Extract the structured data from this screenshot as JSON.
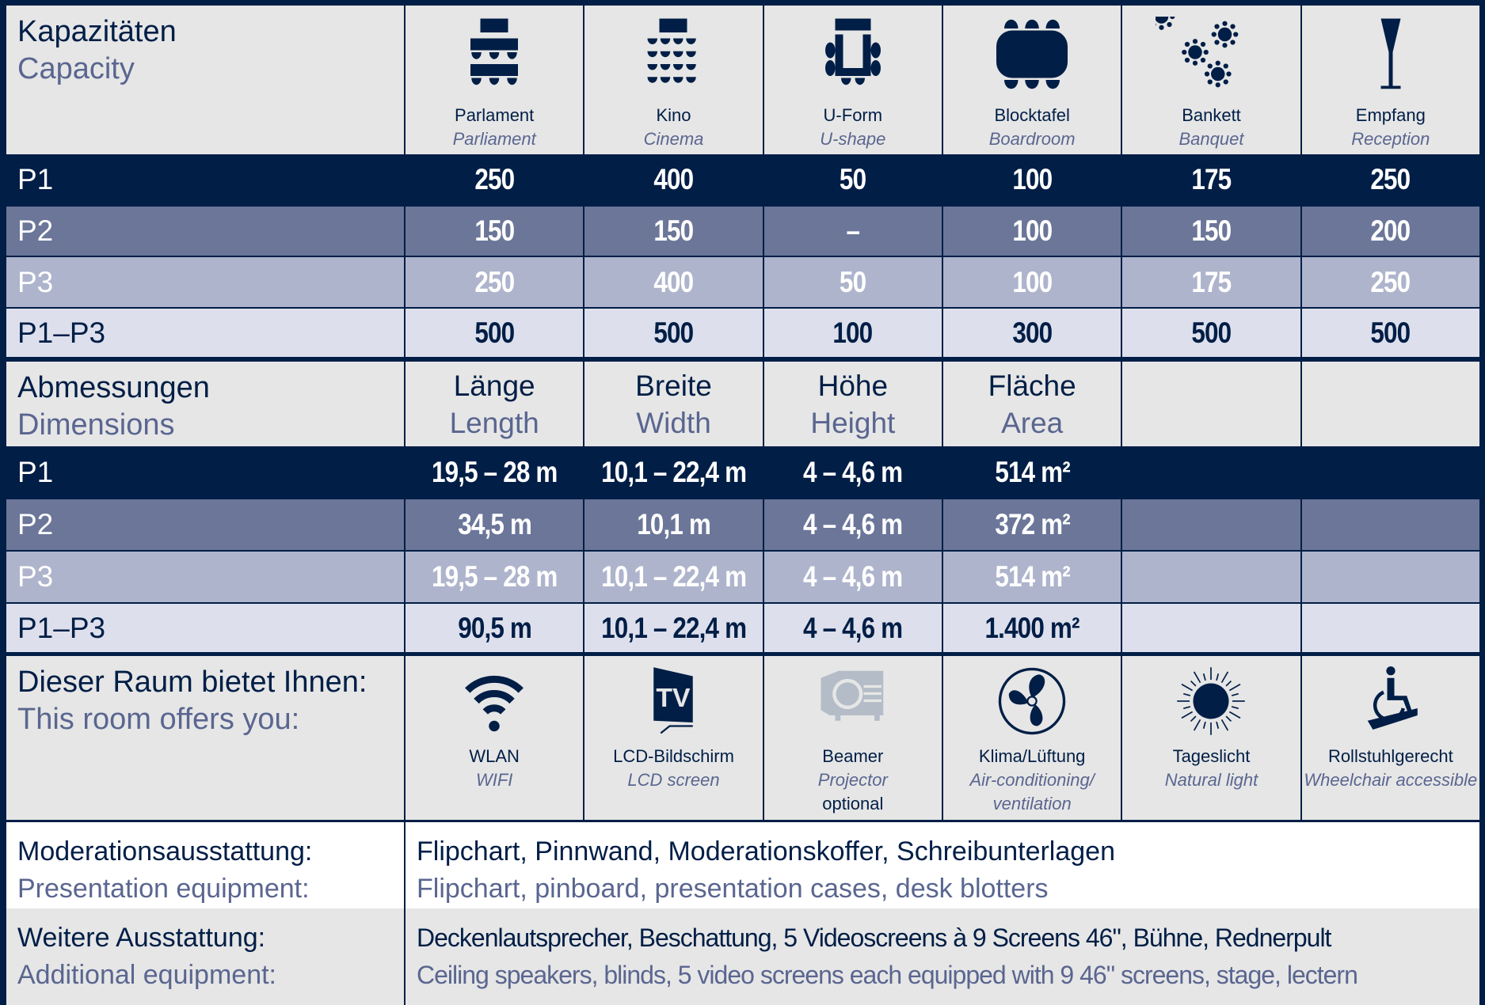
{
  "capacity": {
    "title_de": "Kapazitäten",
    "title_en": "Capacity",
    "columns": [
      {
        "de": "Parlament",
        "en": "Parliament",
        "icon": "parliament-seating-icon"
      },
      {
        "de": "Kino",
        "en": "Cinema",
        "icon": "cinema-seating-icon"
      },
      {
        "de": "U-Form",
        "en": "U-shape",
        "icon": "u-shape-seating-icon"
      },
      {
        "de": "Blocktafel",
        "en": "Boardroom",
        "icon": "boardroom-seating-icon"
      },
      {
        "de": "Bankett",
        "en": "Banquet",
        "icon": "banquet-seating-icon"
      },
      {
        "de": "Empfang",
        "en": "Reception",
        "icon": "reception-glass-icon"
      }
    ],
    "rows": [
      {
        "label": "P1",
        "values": [
          "250",
          "400",
          "50",
          "100",
          "175",
          "250"
        ]
      },
      {
        "label": "P2",
        "values": [
          "150",
          "150",
          "–",
          "100",
          "150",
          "200"
        ]
      },
      {
        "label": "P3",
        "values": [
          "250",
          "400",
          "50",
          "100",
          "175",
          "250"
        ]
      },
      {
        "label": "P1–P3",
        "values": [
          "500",
          "500",
          "100",
          "300",
          "500",
          "500"
        ]
      }
    ]
  },
  "dimensions": {
    "title_de": "Abmessungen",
    "title_en": "Dimensions",
    "columns": [
      {
        "de": "Länge",
        "en": "Length"
      },
      {
        "de": "Breite",
        "en": "Width"
      },
      {
        "de": "Höhe",
        "en": "Height"
      },
      {
        "de": "Fläche",
        "en": "Area"
      }
    ],
    "rows": [
      {
        "label": "P1",
        "values": [
          "19,5 – 28 m",
          "10,1 – 22,4 m",
          "4 – 4,6 m",
          "514 m²"
        ]
      },
      {
        "label": "P2",
        "values": [
          "34,5 m",
          "10,1 m",
          "4 – 4,6 m",
          "372 m²"
        ]
      },
      {
        "label": "P3",
        "values": [
          "19,5 – 28 m",
          "10,1 – 22,4 m",
          "4 – 4,6 m",
          "514 m²"
        ]
      },
      {
        "label": "P1–P3",
        "values": [
          "90,5 m",
          "10,1 – 22,4 m",
          "4 – 4,6 m",
          "1.400 m²"
        ]
      }
    ]
  },
  "offers": {
    "title_de": "Dieser Raum bietet Ihnen:",
    "title_en": "This room offers you:",
    "items": [
      {
        "de": "WLAN",
        "en": "WIFI",
        "icon": "wifi-icon"
      },
      {
        "de": "LCD-Bildschirm",
        "en": "LCD screen",
        "icon": "tv-icon"
      },
      {
        "de": "Beamer",
        "en": "Projector",
        "note": "optional",
        "icon": "projector-icon",
        "available": false
      },
      {
        "de": "Klima/Lüftung",
        "en": "Air-conditioning/ ventilation",
        "icon": "fan-icon"
      },
      {
        "de": "Tageslicht",
        "en": "Natural light",
        "icon": "sun-icon"
      },
      {
        "de": "Rollstuhlgerecht",
        "en": "Wheelchair accessible",
        "icon": "wheelchair-icon"
      }
    ]
  },
  "presentation": {
    "label_de": "Moderationsausstattung:",
    "label_en": "Presentation equipment:",
    "value_de": "Flipchart, Pinnwand, Moderationskoffer, Schreibunterlagen",
    "value_en": "Flipchart, pinboard, presentation cases, desk blotters"
  },
  "additional": {
    "label_de": "Weitere Ausstattung:",
    "label_en": "Additional equipment:",
    "value_de": "Deckenlautsprecher, Beschattung, 5 Videoscreens à 9 Screens 46\", Bühne, Rednerpult",
    "value_en": "Ceiling speakers, blinds, 5 video screens each equipped with 9 46\" screens, stage, lectern"
  },
  "colors": {
    "navy": "#001e46",
    "p2": "#6b7699",
    "p3": "#aeb4cc",
    "p13": "#dde0ec",
    "header": "#e6e6e6",
    "subtext": "#5a6690",
    "inactive_icon": "#b4bcc8"
  }
}
